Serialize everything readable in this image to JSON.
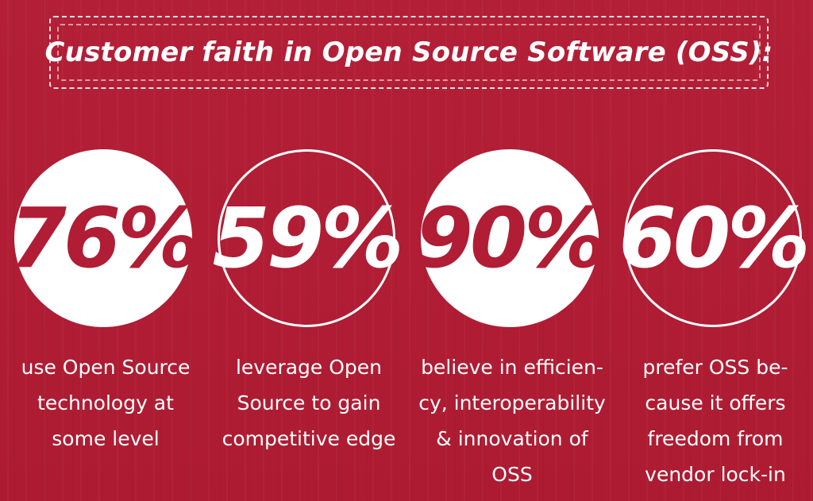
{
  "title": "Customer faith in Open Source Software (OSS):",
  "colors": {
    "background": "#b01d34",
    "circle_fill": "#ffffff",
    "text": "#ffffff"
  },
  "stats": [
    {
      "value": "76%",
      "style": "filled",
      "description_lines": [
        "use Open Source",
        "technology at",
        "some level"
      ]
    },
    {
      "value": "59%",
      "style": "outline",
      "description_lines": [
        "leverage Open",
        "Source to gain",
        "competitive edge"
      ]
    },
    {
      "value": "90%",
      "style": "filled",
      "description_lines": [
        "believe in efficien-",
        "cy, interoperability",
        "& innovation of",
        "OSS"
      ]
    },
    {
      "value": "60%",
      "style": "outline",
      "description_lines": [
        "prefer OSS be-",
        "cause it offers",
        "freedom from",
        "vendor lock-in"
      ]
    }
  ]
}
